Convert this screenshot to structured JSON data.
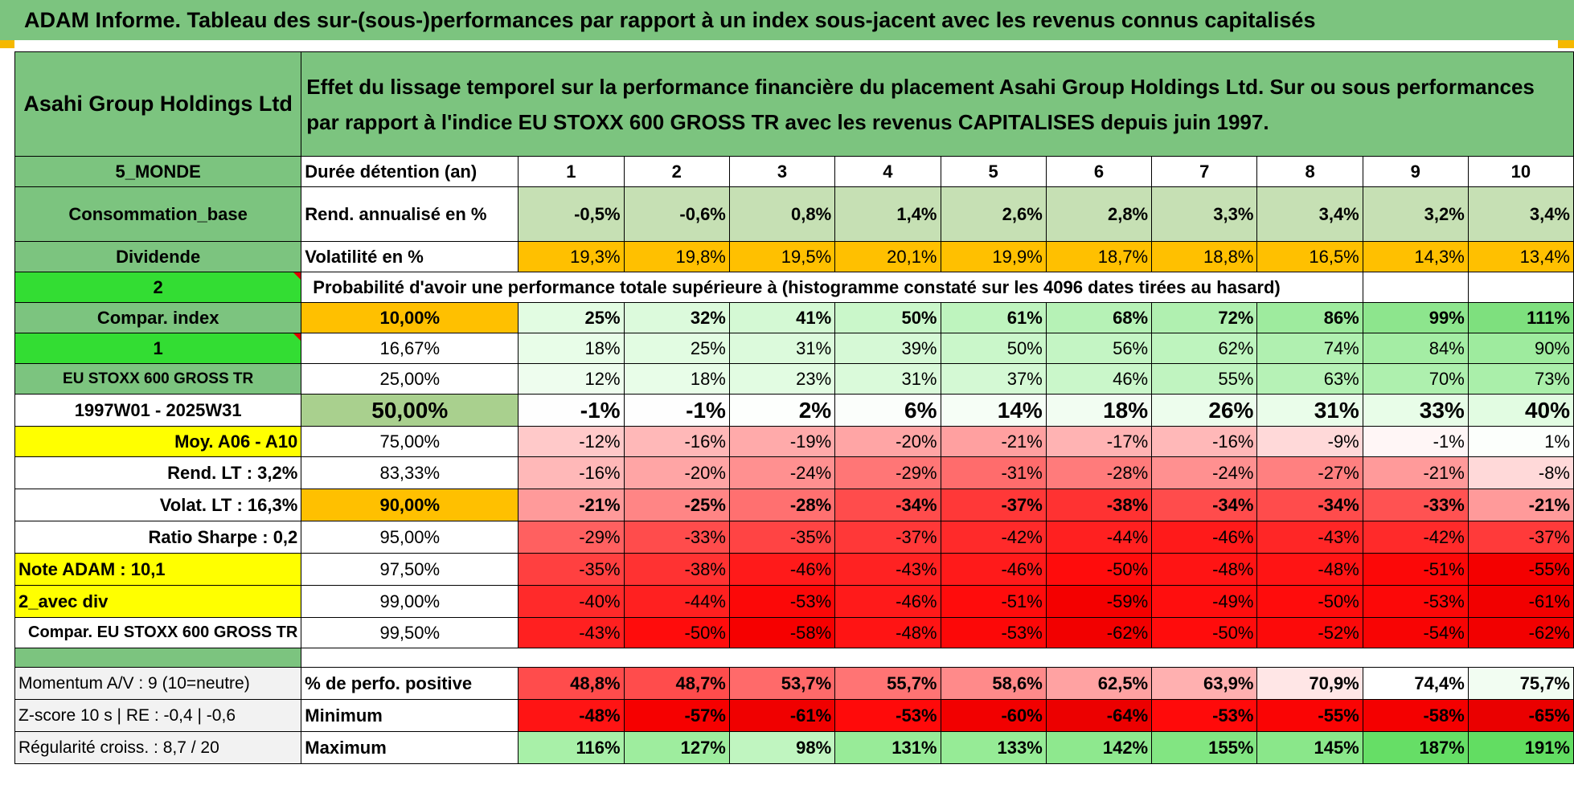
{
  "title": "ADAM Informe. Tableau des sur-(sous-)performances par rapport à un index sous-jacent avec les revenus connus capitalisés",
  "company": "Asahi Group Holdings Ltd",
  "description": "Effet du lissage temporel sur la performance financière du placement Asahi Group Holdings Ltd. Sur ou sous performances par rapport à l'indice EU STOXX 600 GROSS TR avec les revenus CAPITALISES depuis juin 1997.",
  "left_labels": {
    "region": "5_MONDE",
    "sector": "Consommation_base",
    "dividend": "Dividende",
    "num2": "2",
    "compar_index": "Compar. index",
    "num1": "1",
    "index_name": "EU STOXX 600 GROSS TR",
    "period": "1997W01 - 2025W31",
    "moy": "Moy. A06 - A10",
    "rend_lt": "Rend. LT :    3,2%",
    "volat_lt": "Volat. LT :    16,3%",
    "sharpe": "Ratio Sharpe :     0,2",
    "note": "Note ADAM : 10,1",
    "avec_div": "2_avec div",
    "compar_full": "Compar. EU STOXX 600 GROSS TR"
  },
  "row_labels": {
    "duree": "Durée détention (an)",
    "rend": "Rend. annualisé en %",
    "vol": "Volatilité en %",
    "prob": "Probabilité d'avoir une performance totale supérieure à (histogramme constaté sur les 4096 dates tirées au hasard)"
  },
  "years": [
    "1",
    "2",
    "3",
    "4",
    "5",
    "6",
    "7",
    "8",
    "9",
    "10"
  ],
  "rend": [
    "-0,5%",
    "-0,6%",
    "0,8%",
    "1,4%",
    "2,6%",
    "2,8%",
    "3,3%",
    "3,4%",
    "3,2%",
    "3,4%"
  ],
  "vol": [
    "19,3%",
    "19,8%",
    "19,5%",
    "20,1%",
    "19,9%",
    "18,7%",
    "18,8%",
    "16,5%",
    "14,3%",
    "13,4%"
  ],
  "prob_rows": [
    {
      "p": "10,00%",
      "v": [
        "25%",
        "32%",
        "41%",
        "50%",
        "61%",
        "68%",
        "72%",
        "86%",
        "99%",
        "111%"
      ]
    },
    {
      "p": "16,67%",
      "v": [
        "18%",
        "25%",
        "31%",
        "39%",
        "50%",
        "56%",
        "62%",
        "74%",
        "84%",
        "90%"
      ]
    },
    {
      "p": "25,00%",
      "v": [
        "12%",
        "18%",
        "23%",
        "31%",
        "37%",
        "46%",
        "55%",
        "63%",
        "70%",
        "73%"
      ]
    },
    {
      "p": "50,00%",
      "v": [
        "-1%",
        "-1%",
        "2%",
        "6%",
        "14%",
        "18%",
        "26%",
        "31%",
        "33%",
        "40%"
      ]
    },
    {
      "p": "75,00%",
      "v": [
        "-12%",
        "-16%",
        "-19%",
        "-20%",
        "-21%",
        "-17%",
        "-16%",
        "-9%",
        "-1%",
        "1%"
      ]
    },
    {
      "p": "83,33%",
      "v": [
        "-16%",
        "-20%",
        "-24%",
        "-29%",
        "-31%",
        "-28%",
        "-24%",
        "-27%",
        "-21%",
        "-8%"
      ]
    },
    {
      "p": "90,00%",
      "v": [
        "-21%",
        "-25%",
        "-28%",
        "-34%",
        "-37%",
        "-38%",
        "-34%",
        "-34%",
        "-33%",
        "-21%"
      ]
    },
    {
      "p": "95,00%",
      "v": [
        "-29%",
        "-33%",
        "-35%",
        "-37%",
        "-42%",
        "-44%",
        "-46%",
        "-43%",
        "-42%",
        "-37%"
      ]
    },
    {
      "p": "97,50%",
      "v": [
        "-35%",
        "-38%",
        "-46%",
        "-43%",
        "-46%",
        "-50%",
        "-48%",
        "-48%",
        "-51%",
        "-55%"
      ]
    },
    {
      "p": "99,00%",
      "v": [
        "-40%",
        "-44%",
        "-53%",
        "-46%",
        "-51%",
        "-59%",
        "-49%",
        "-50%",
        "-53%",
        "-61%"
      ]
    },
    {
      "p": "99,50%",
      "v": [
        "-43%",
        "-50%",
        "-58%",
        "-48%",
        "-53%",
        "-62%",
        "-50%",
        "-52%",
        "-54%",
        "-62%"
      ]
    }
  ],
  "bottom": {
    "momentum": "Momentum A/V : 9 (10=neutre)",
    "zscore": "Z-score 10 s | RE : -0,4 | -0,6",
    "regularite": "Régularité croiss. : 8,7 / 20",
    "pos_label": "% de perfo. positive",
    "min_label": "Minimum",
    "max_label": "Maximum",
    "pos": [
      "48,8%",
      "48,7%",
      "53,7%",
      "55,7%",
      "58,6%",
      "62,5%",
      "63,9%",
      "70,9%",
      "74,4%",
      "75,7%"
    ],
    "min": [
      "-48%",
      "-57%",
      "-61%",
      "-53%",
      "-60%",
      "-64%",
      "-53%",
      "-55%",
      "-58%",
      "-65%"
    ],
    "max": [
      "116%",
      "127%",
      "98%",
      "131%",
      "133%",
      "142%",
      "155%",
      "145%",
      "187%",
      "191%"
    ]
  },
  "colors": {
    "header_green": "#7cc47f",
    "bright_green": "#33dd33",
    "yellow": "#ffff00",
    "orange": "#ffc000",
    "light_green": "#c6e0b4",
    "label_red": "#e00000"
  }
}
